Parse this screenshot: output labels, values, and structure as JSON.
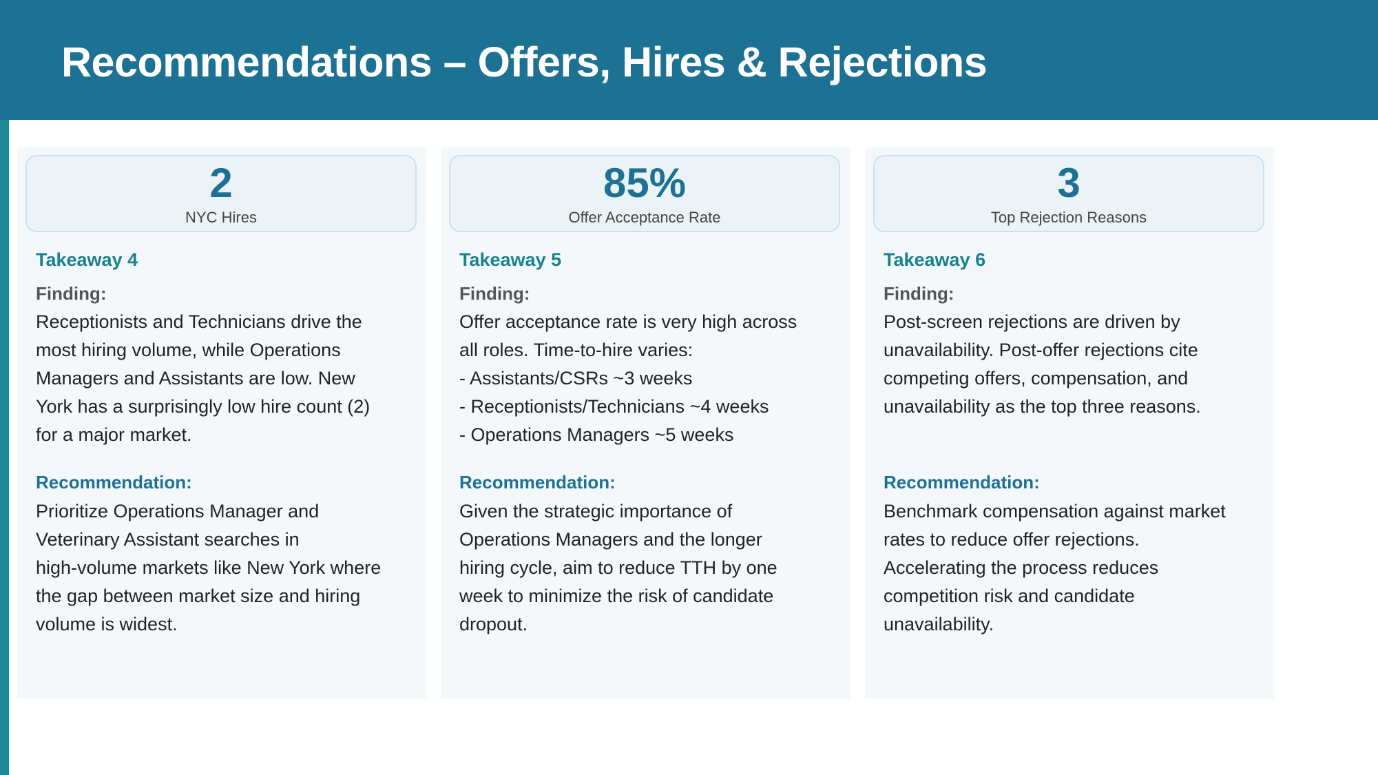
{
  "slide": {
    "title": "Recommendations – Offers, Hires & Rejections"
  },
  "cards": [
    {
      "stat_value": "2",
      "stat_label": "NYC Hires",
      "takeaway": "Takeaway 4",
      "finding_label": "Finding:",
      "finding_text": "Receptionists and Technicians drive the\nmost hiring volume, while Operations\nManagers and Assistants are low. New\nYork has a surprisingly low hire count (2)\nfor a major market.",
      "recommendation_label": "Recommendation:",
      "recommendation_text": "Prioritize Operations Manager and\nVeterinary Assistant searches in\nhigh-volume markets like New York where\nthe gap between market size and hiring\nvolume is widest."
    },
    {
      "stat_value": "85%",
      "stat_label": "Offer Acceptance Rate",
      "takeaway": "Takeaway 5",
      "finding_label": "Finding:",
      "finding_text": "Offer acceptance rate is very high across\nall roles. Time-to-hire varies:\n- Assistants/CSRs ~3 weeks\n- Receptionists/Technicians ~4 weeks\n- Operations Managers ~5 weeks",
      "recommendation_label": "Recommendation:",
      "recommendation_text": "Given the strategic importance of\nOperations Managers and the longer\nhiring cycle, aim to reduce TTH by one\nweek to minimize the risk of candidate\ndropout."
    },
    {
      "stat_value": "3",
      "stat_label": "Top Rejection Reasons",
      "takeaway": "Takeaway 6",
      "finding_label": "Finding:",
      "finding_text": "Post-screen rejections are driven by\nunavailability. Post-offer rejections cite\ncompeting offers, compensation, and\nunavailability as the top three reasons.",
      "recommendation_label": "Recommendation:",
      "recommendation_text": "Benchmark compensation against market\nrates to reduce offer rejections.\nAccelerating the process reduces\ncompetition risk and candidate\nunavailability."
    }
  ],
  "colors": {
    "header_bg": "#1d7294",
    "accent_bar": "#1e8a95",
    "takeaway": "#18828f",
    "stat_value": "#1d7294",
    "card_bg": "#f4f8fa",
    "stat_box_bg": "#ebf3f7",
    "stat_box_border": "#c7e1f2"
  }
}
